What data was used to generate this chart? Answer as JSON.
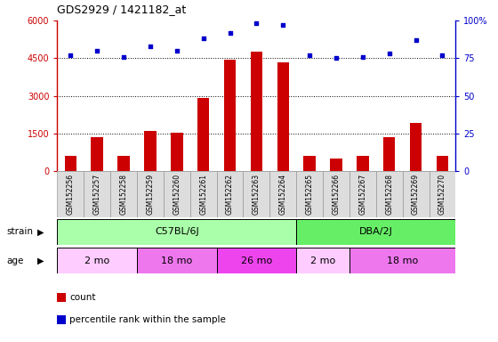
{
  "title": "GDS2929 / 1421182_at",
  "samples": [
    "GSM152256",
    "GSM152257",
    "GSM152258",
    "GSM152259",
    "GSM152260",
    "GSM152261",
    "GSM152262",
    "GSM152263",
    "GSM152264",
    "GSM152265",
    "GSM152266",
    "GSM152267",
    "GSM152268",
    "GSM152269",
    "GSM152270"
  ],
  "counts": [
    620,
    1350,
    620,
    1600,
    1520,
    2900,
    4450,
    4750,
    4350,
    620,
    480,
    620,
    1350,
    1900,
    620
  ],
  "percentiles": [
    77,
    80,
    76,
    83,
    80,
    88,
    92,
    98,
    97,
    77,
    75,
    76,
    78,
    87,
    77
  ],
  "bar_color": "#cc0000",
  "dot_color": "#0000cc",
  "ylim_left": [
    0,
    6000
  ],
  "ylim_right": [
    0,
    100
  ],
  "yticks_left": [
    0,
    1500,
    3000,
    4500,
    6000
  ],
  "yticks_right": [
    0,
    25,
    50,
    75,
    100
  ],
  "strain_groups": [
    {
      "label": "C57BL/6J",
      "start": 0,
      "end": 9,
      "color": "#aaffaa"
    },
    {
      "label": "DBA/2J",
      "start": 9,
      "end": 15,
      "color": "#66ee66"
    }
  ],
  "age_groups": [
    {
      "label": "2 mo",
      "start": 0,
      "end": 3,
      "color": "#ffccff"
    },
    {
      "label": "18 mo",
      "start": 3,
      "end": 6,
      "color": "#ee77ee"
    },
    {
      "label": "26 mo",
      "start": 6,
      "end": 9,
      "color": "#ee44ee"
    },
    {
      "label": "2 mo",
      "start": 9,
      "end": 11,
      "color": "#ffccff"
    },
    {
      "label": "18 mo",
      "start": 11,
      "end": 15,
      "color": "#ee77ee"
    }
  ],
  "legend_items": [
    {
      "label": "count",
      "color": "#cc0000"
    },
    {
      "label": "percentile rank within the sample",
      "color": "#0000cc"
    }
  ],
  "tick_color_left": "#cc0000",
  "tick_color_right": "#0000cc",
  "background_color": "#ffffff",
  "grid_color": "#000000",
  "header_bg": "#cccccc"
}
